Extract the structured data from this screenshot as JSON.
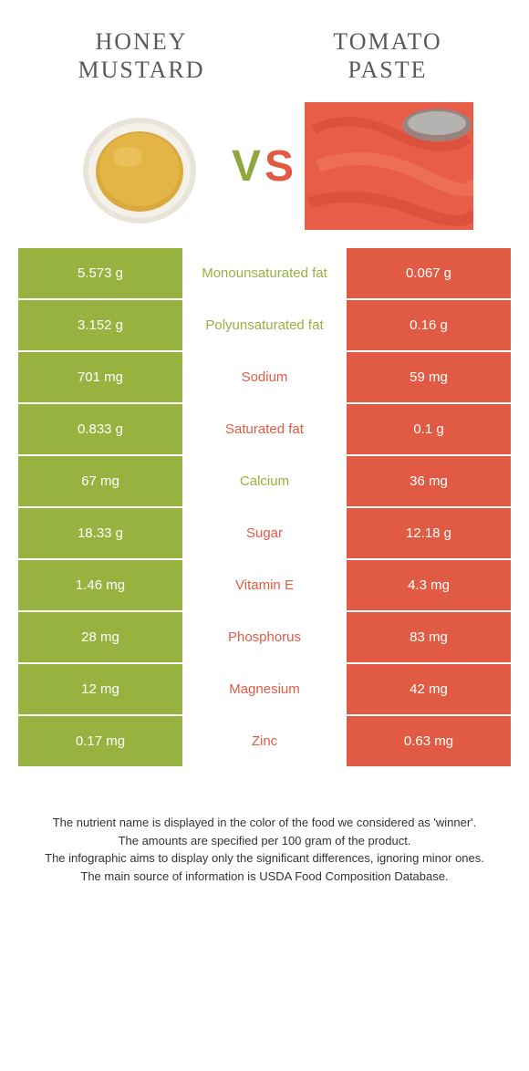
{
  "colors": {
    "left": "#98b240",
    "right": "#e15b44",
    "mid_bg": "#ffffff"
  },
  "food_left": {
    "title_line1": "HONEY",
    "title_line2": "MUSTARD"
  },
  "food_right": {
    "title_line1": "TOMATO",
    "title_line2": "PASTE"
  },
  "vs": {
    "v": "V",
    "s": "S"
  },
  "rows": [
    {
      "left": "5.573 g",
      "label": "Monounsaturated fat",
      "right": "0.067 g",
      "winner": "left"
    },
    {
      "left": "3.152 g",
      "label": "Polyunsaturated fat",
      "right": "0.16 g",
      "winner": "left"
    },
    {
      "left": "701 mg",
      "label": "Sodium",
      "right": "59 mg",
      "winner": "right"
    },
    {
      "left": "0.833 g",
      "label": "Saturated fat",
      "right": "0.1 g",
      "winner": "right"
    },
    {
      "left": "67 mg",
      "label": "Calcium",
      "right": "36 mg",
      "winner": "left"
    },
    {
      "left": "18.33 g",
      "label": "Sugar",
      "right": "12.18 g",
      "winner": "right"
    },
    {
      "left": "1.46 mg",
      "label": "Vitamin E",
      "right": "4.3 mg",
      "winner": "right"
    },
    {
      "left": "28 mg",
      "label": "Phosphorus",
      "right": "83 mg",
      "winner": "right"
    },
    {
      "left": "12 mg",
      "label": "Magnesium",
      "right": "42 mg",
      "winner": "right"
    },
    {
      "left": "0.17 mg",
      "label": "Zinc",
      "right": "0.63 mg",
      "winner": "right"
    }
  ],
  "footnote": {
    "l1": "The nutrient name is displayed in the color of the food we considered as 'winner'.",
    "l2": "The amounts are specified per 100 gram of the product.",
    "l3": "The infographic aims to display only the significant differences, ignoring minor ones.",
    "l4": "The main source of information is USDA Food Composition Database."
  }
}
